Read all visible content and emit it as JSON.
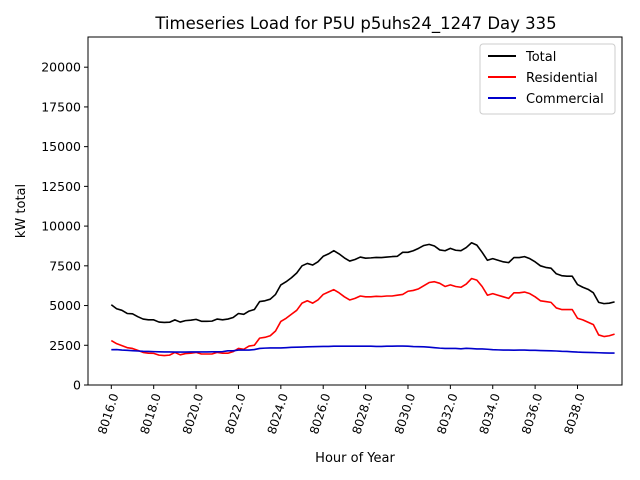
{
  "chart_data": {
    "type": "line",
    "title": "Timeseries Load for P5U p5uhs24_1247  Day 335",
    "xlabel": "Hour of Year",
    "ylabel": "kW total",
    "xlim": [
      8014.9,
      8040.1
    ],
    "ylim": [
      0,
      21900
    ],
    "x_ticks": [
      8016,
      8018,
      8020,
      8022,
      8024,
      8026,
      8028,
      8030,
      8032,
      8034,
      8036,
      8038
    ],
    "x_tick_labels": [
      "8016.0",
      "8018.0",
      "8020.0",
      "8022.0",
      "8024.0",
      "8026.0",
      "8028.0",
      "8030.0",
      "8032.0",
      "8034.0",
      "8036.0",
      "8038.0"
    ],
    "y_ticks": [
      0,
      2500,
      5000,
      7500,
      10000,
      12500,
      15000,
      17500,
      20000
    ],
    "y_tick_labels": [
      "0",
      "2500",
      "5000",
      "7500",
      "10000",
      "12500",
      "15000",
      "17500",
      "20000"
    ],
    "legend_position": "top-right",
    "x_start": 8016,
    "x_step": 0.25,
    "series": [
      {
        "name": "Total",
        "color": "#000000",
        "values": [
          5050,
          4800,
          4700,
          4500,
          4480,
          4300,
          4150,
          4100,
          4100,
          3960,
          3940,
          3950,
          4100,
          3960,
          4050,
          4080,
          4130,
          4010,
          4010,
          4020,
          4150,
          4100,
          4150,
          4250,
          4500,
          4450,
          4650,
          4750,
          5250,
          5300,
          5400,
          5700,
          6300,
          6500,
          6750,
          7050,
          7500,
          7650,
          7550,
          7750,
          8100,
          8250,
          8450,
          8250,
          8000,
          7800,
          7900,
          8050,
          7980,
          8000,
          8030,
          8020,
          8050,
          8080,
          8100,
          8350,
          8350,
          8450,
          8600,
          8780,
          8850,
          8750,
          8500,
          8450,
          8600,
          8480,
          8450,
          8650,
          8950,
          8800,
          8350,
          7850,
          7950,
          7850,
          7750,
          7700,
          8020,
          8020,
          8080,
          7950,
          7750,
          7500,
          7400,
          7350,
          7000,
          6880,
          6850,
          6850,
          6320,
          6150,
          6020,
          5800,
          5200,
          5120,
          5150,
          5230
        ]
      },
      {
        "name": "Residential",
        "color": "#ff0000",
        "values": [
          2800,
          2600,
          2480,
          2350,
          2300,
          2180,
          2050,
          2000,
          1990,
          1880,
          1850,
          1880,
          2050,
          1900,
          1980,
          2000,
          2050,
          1950,
          1950,
          1950,
          2050,
          2000,
          2000,
          2100,
          2300,
          2250,
          2450,
          2500,
          2950,
          3000,
          3100,
          3400,
          4000,
          4200,
          4450,
          4700,
          5150,
          5300,
          5150,
          5350,
          5700,
          5850,
          6000,
          5800,
          5550,
          5350,
          5450,
          5600,
          5550,
          5550,
          5580,
          5570,
          5600,
          5600,
          5650,
          5700,
          5900,
          5950,
          6050,
          6250,
          6450,
          6500,
          6400,
          6200,
          6300,
          6200,
          6150,
          6350,
          6700,
          6600,
          6200,
          5650,
          5750,
          5650,
          5550,
          5450,
          5800,
          5800,
          5850,
          5750,
          5550,
          5300,
          5250,
          5200,
          4850,
          4750,
          4750,
          4750,
          4200,
          4100,
          3950,
          3800,
          3150,
          3050,
          3100,
          3200
        ]
      },
      {
        "name": "Commercial",
        "color": "#0000cc",
        "values": [
          2220,
          2230,
          2200,
          2180,
          2160,
          2140,
          2120,
          2110,
          2100,
          2090,
          2080,
          2080,
          2070,
          2070,
          2070,
          2080,
          2080,
          2080,
          2080,
          2090,
          2090,
          2100,
          2150,
          2150,
          2200,
          2200,
          2200,
          2230,
          2300,
          2320,
          2330,
          2330,
          2330,
          2350,
          2370,
          2380,
          2390,
          2400,
          2410,
          2420,
          2430,
          2430,
          2440,
          2440,
          2440,
          2440,
          2440,
          2440,
          2440,
          2440,
          2430,
          2430,
          2440,
          2440,
          2450,
          2450,
          2440,
          2420,
          2410,
          2400,
          2380,
          2350,
          2320,
          2300,
          2300,
          2300,
          2280,
          2310,
          2290,
          2270,
          2270,
          2250,
          2220,
          2210,
          2200,
          2200,
          2190,
          2200,
          2200,
          2180,
          2180,
          2170,
          2160,
          2150,
          2140,
          2120,
          2110,
          2090,
          2070,
          2060,
          2050,
          2040,
          2030,
          2020,
          2010,
          2010
        ]
      }
    ]
  }
}
